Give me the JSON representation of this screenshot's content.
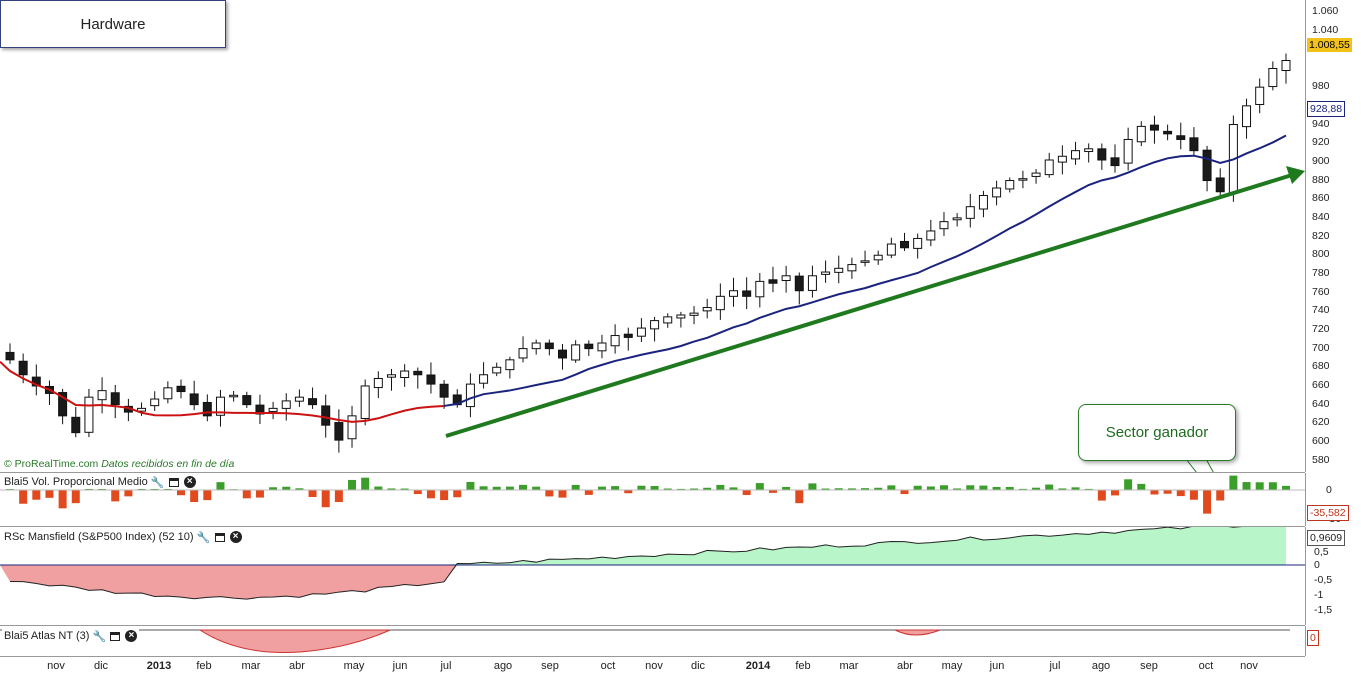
{
  "chart_title": "Hardware",
  "source_text": "© ProRealTime.com",
  "source_note": "Datos recibidos en fin de día",
  "callout": "Sector ganador",
  "main": {
    "y_ticks": [
      "1.060",
      "1.040",
      "1.020",
      "980",
      "960",
      "940",
      "920",
      "900",
      "880",
      "860",
      "840",
      "820",
      "800",
      "780",
      "760",
      "740",
      "720",
      "700",
      "680",
      "660",
      "640",
      "620",
      "600",
      "580"
    ],
    "last_price": "1.008,55",
    "ma_value": "928,88"
  },
  "vol": {
    "name": "Blai5 Vol. Proporcional Medio",
    "ticks": [
      "0",
      "-50"
    ],
    "last_value": "-35,582"
  },
  "rsc": {
    "name": "RSc Mansfield (S&P500 Index) (52 10)",
    "ticks": [
      "0,5",
      "0",
      "-0,5",
      "-1",
      "-1,5"
    ],
    "last_value": "0,9609"
  },
  "atlas": {
    "name": "Blai5 Atlas NT (3)",
    "last_value": "0"
  },
  "x_axis": [
    "nov",
    "dic",
    "2013",
    "feb",
    "mar",
    "abr",
    "may",
    "jun",
    "jul",
    "ago",
    "sep",
    "oct",
    "nov",
    "dic",
    "2014",
    "feb",
    "mar",
    "abr",
    "may",
    "jun",
    "jul",
    "ago",
    "sep",
    "oct",
    "nov"
  ],
  "colors": {
    "up_fill": "#ffffff",
    "down_fill": "#1a1a1a",
    "ma_red": "#cc1111",
    "ma_blue": "#1a237e",
    "trend": "#1f7a1f",
    "vol_pos": "#3b9e2a",
    "vol_neg": "#e04a1e",
    "rsc_pos": "#b8f5c8",
    "rsc_neg": "#f0a0a0"
  },
  "chart_data": {
    "type": "candlestick",
    "series_close": [
      688,
      672,
      660,
      652,
      628,
      610,
      648,
      655,
      640,
      632,
      636,
      646,
      658,
      654,
      640,
      628,
      648,
      650,
      640,
      630,
      636,
      644,
      648,
      640,
      618,
      602,
      628,
      660,
      668,
      672,
      676,
      672,
      662,
      648,
      640,
      662,
      672,
      680,
      688,
      700,
      706,
      700,
      690,
      704,
      700,
      706,
      714,
      712,
      722,
      730,
      734,
      736,
      738,
      744,
      756,
      762,
      756,
      772,
      770,
      778,
      762,
      778,
      782,
      786,
      790,
      794,
      800,
      812,
      808,
      818,
      826,
      836,
      840,
      852,
      864,
      872,
      880,
      882,
      888,
      902,
      906,
      912,
      914,
      902,
      896,
      924,
      938,
      934,
      930,
      924,
      912,
      880,
      868,
      940,
      960,
      980,
      1000,
      1008.55
    ],
    "ylim": [
      570,
      1068
    ],
    "moving_average_last": 928.88
  }
}
